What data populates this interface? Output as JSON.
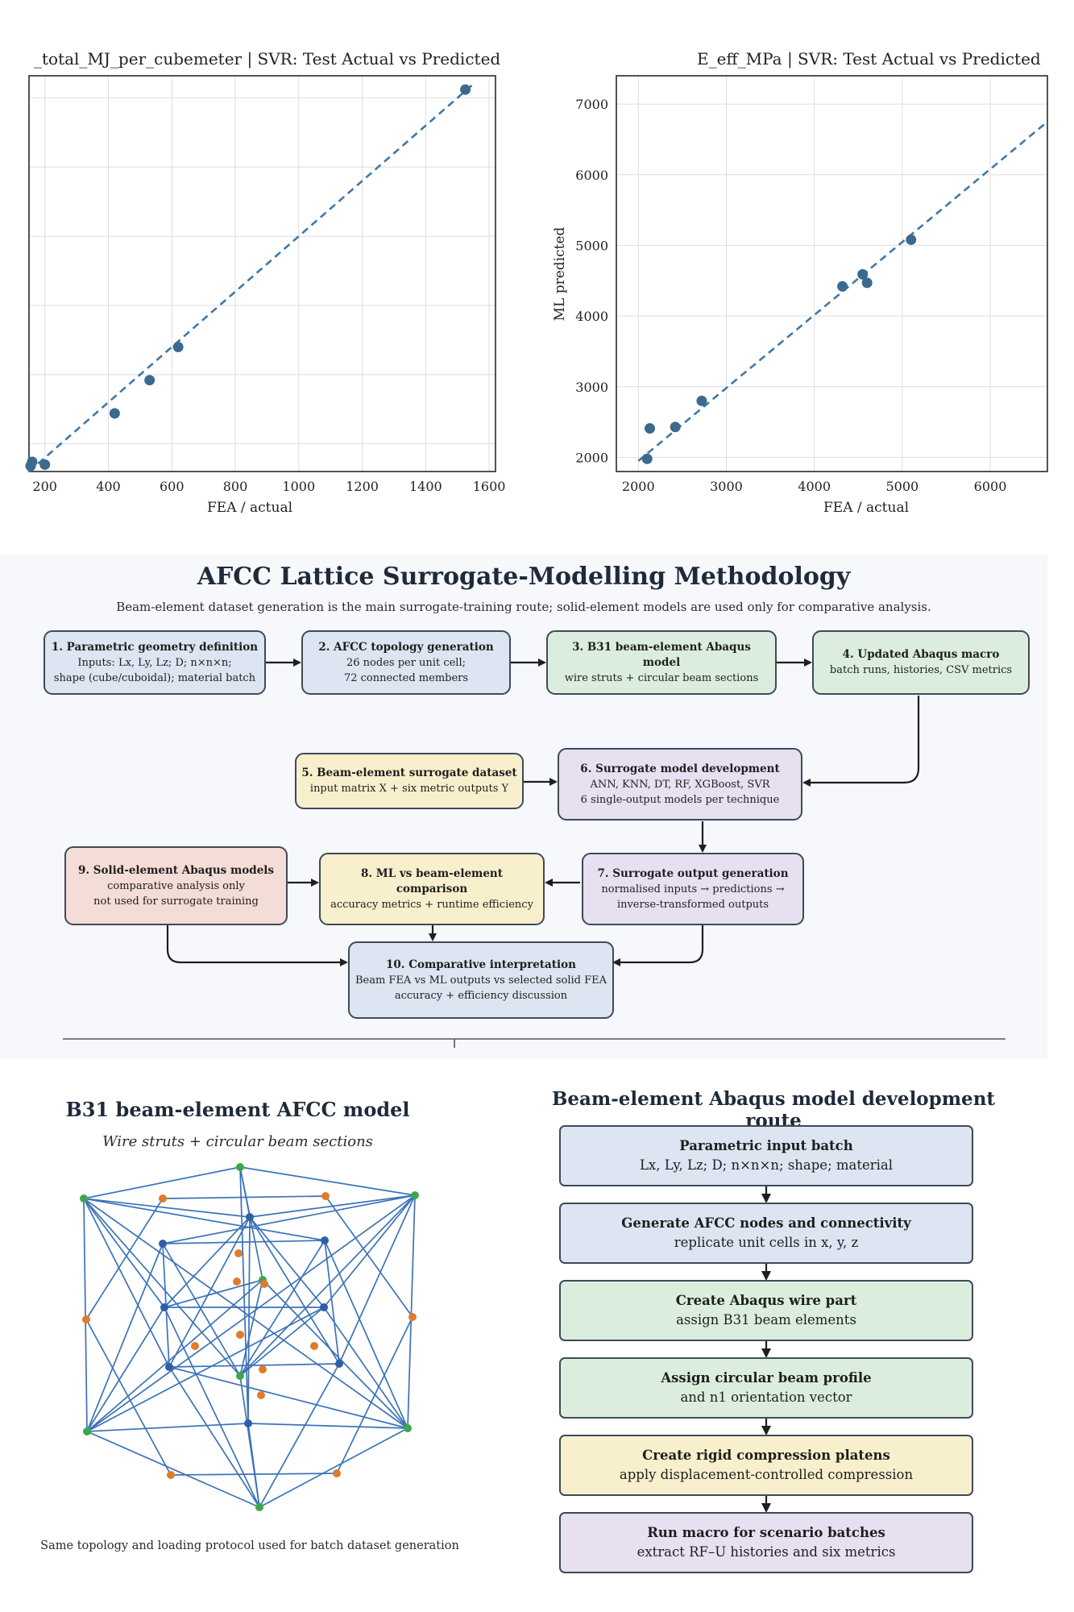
{
  "chart_data": [
    {
      "type": "scatter",
      "title": "_total_MJ_per_cubemeter | SVR: Test Actual vs Predicted",
      "xlabel": "FEA / actual",
      "ylabel": "",
      "xlim": [
        150,
        1620
      ],
      "ylim": [
        150,
        1580
      ],
      "x_ticks": [
        200,
        400,
        600,
        800,
        1000,
        1200,
        1400,
        1600
      ],
      "grid": true,
      "series": [
        {
          "x": [
            155,
            160,
            200,
            420,
            530,
            620,
            1525
          ],
          "y": [
            170,
            185,
            175,
            360,
            480,
            600,
            1530
          ]
        }
      ],
      "reference_line": {
        "x": [
          150,
          1550
        ],
        "y": [
          150,
          1550
        ],
        "style": "dashed"
      },
      "colors": {
        "points": "#3b6a8e",
        "line": "#3f78a8"
      }
    },
    {
      "type": "scatter",
      "title": "E_eff_MPa | SVR: Test Actual vs Predicted",
      "xlabel": "FEA / actual",
      "ylabel": "ML predicted",
      "xlim": [
        1750,
        6650
      ],
      "ylim": [
        1800,
        7400
      ],
      "x_ticks": [
        2000,
        3000,
        4000,
        5000,
        6000
      ],
      "y_ticks": [
        2000,
        3000,
        4000,
        5000,
        6000,
        7000
      ],
      "grid": true,
      "series": [
        {
          "x": [
            2100,
            2130,
            2420,
            2720,
            4320,
            4550,
            4600,
            5100
          ],
          "y": [
            1980,
            2410,
            2430,
            2800,
            4420,
            4590,
            4470,
            5080
          ]
        }
      ],
      "reference_line": {
        "x": [
          2000,
          6650
        ],
        "y": [
          1950,
          6750
        ],
        "style": "dashed"
      },
      "colors": {
        "points": "#3b6a8e",
        "line": "#3f78a8"
      }
    }
  ],
  "methodology": {
    "title": "AFCC Lattice Surrogate-Modelling Methodology",
    "subtitle": "Beam-element dataset generation is the main surrogate-training route; solid-element models are used only for comparative analysis.",
    "boxes": [
      {
        "title": "1. Parametric geometry definition",
        "lines": [
          "Inputs: Lx, Ly, Lz; D; n×n×n;",
          "shape (cube/cuboidal); material batch"
        ],
        "color": "blue"
      },
      {
        "title": "2. AFCC topology generation",
        "lines": [
          "26 nodes per unit cell;",
          "72 connected members"
        ],
        "color": "blue"
      },
      {
        "title": "3. B31 beam-element Abaqus model",
        "lines": [
          "wire struts + circular beam sections"
        ],
        "color": "green"
      },
      {
        "title": "4. Updated Abaqus macro",
        "lines": [
          "batch runs, histories, CSV metrics"
        ],
        "color": "green"
      },
      {
        "title": "5. Beam-element surrogate dataset",
        "lines": [
          "input matrix X + six metric outputs Y"
        ],
        "color": "yellow"
      },
      {
        "title": "6. Surrogate model development",
        "lines": [
          "ANN, KNN, DT, RF, XGBoost, SVR",
          "6 single-output models per technique"
        ],
        "color": "purple"
      },
      {
        "title": "7. Surrogate output generation",
        "lines": [
          "normalised inputs → predictions →",
          "inverse-transformed outputs"
        ],
        "color": "purple"
      },
      {
        "title": "8. ML vs beam-element comparison",
        "lines": [
          "accuracy metrics + runtime efficiency"
        ],
        "color": "yellow"
      },
      {
        "title": "9. Solid-element Abaqus models",
        "lines": [
          "comparative analysis only",
          "not used for surrogate training"
        ],
        "color": "red"
      },
      {
        "title": "10. Comparative interpretation",
        "lines": [
          "Beam FEA vs ML outputs vs selected solid FEA",
          "accuracy + efficiency discussion"
        ],
        "color": "blue"
      }
    ]
  },
  "lattice": {
    "title": "B31 beam-element AFCC model",
    "subtitle": "Wire struts + circular beam sections",
    "caption": "Same topology and loading protocol used for batch dataset generation"
  },
  "route": {
    "title": "Beam-element Abaqus model development route",
    "steps": [
      {
        "title": "Parametric input batch",
        "detail": "Lx, Ly, Lz; D; n×n×n; shape; material",
        "color": "blue"
      },
      {
        "title": "Generate AFCC nodes and connectivity",
        "detail": "replicate unit cells in x, y, z",
        "color": "blue"
      },
      {
        "title": "Create Abaqus wire part",
        "detail": "assign B31 beam elements",
        "color": "green"
      },
      {
        "title": "Assign circular beam profile",
        "detail": "and n1 orientation vector",
        "color": "green"
      },
      {
        "title": "Create rigid compression platens",
        "detail": "apply displacement-controlled compression",
        "color": "yellow"
      },
      {
        "title": "Run macro for scenario batches",
        "detail": "extract RF–U histories and six metrics",
        "color": "purple"
      }
    ]
  }
}
